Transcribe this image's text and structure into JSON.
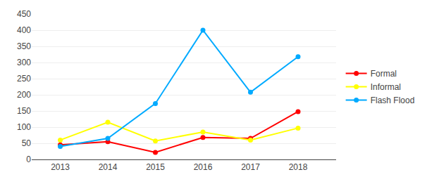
{
  "chart_data": {
    "type": "line",
    "x": [
      2013,
      2014,
      2015,
      2016,
      2017,
      2018
    ],
    "series": [
      {
        "name": "Formal",
        "color": "#FF0000",
        "values": [
          45,
          55,
          22,
          68,
          65,
          148
        ]
      },
      {
        "name": "Informal",
        "color": "#FFFF00",
        "values": [
          60,
          115,
          57,
          85,
          60,
          97
        ]
      },
      {
        "name": "Flash Flood",
        "color": "#00AAFF",
        "values": [
          40,
          65,
          173,
          400,
          208,
          318
        ]
      }
    ],
    "xlim": [
      2012.4,
      2018.8
    ],
    "xticks": [
      2013,
      2014,
      2015,
      2016,
      2017,
      2018
    ],
    "ylim": [
      0,
      450
    ],
    "yticks": [
      0,
      50,
      100,
      150,
      200,
      250,
      300,
      350,
      400,
      450
    ],
    "grid": "y",
    "legend": "right",
    "marker": "circle",
    "line_style": "solid"
  }
}
